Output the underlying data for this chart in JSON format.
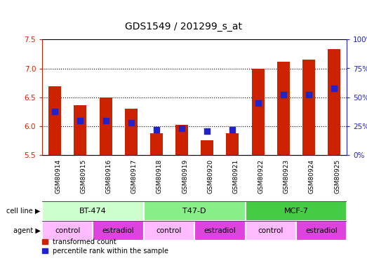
{
  "title": "GDS1549 / 201299_s_at",
  "samples": [
    "GSM80914",
    "GSM80915",
    "GSM80916",
    "GSM80917",
    "GSM80918",
    "GSM80919",
    "GSM80920",
    "GSM80921",
    "GSM80922",
    "GSM80923",
    "GSM80924",
    "GSM80925"
  ],
  "red_values": [
    6.69,
    6.36,
    6.5,
    6.3,
    5.88,
    6.02,
    5.76,
    5.88,
    7.0,
    7.12,
    7.15,
    7.33
  ],
  "blue_pct": [
    38,
    30,
    30,
    28,
    22,
    23,
    21,
    22,
    45,
    52,
    52,
    58
  ],
  "ylim_left": [
    5.5,
    7.5
  ],
  "ylim_right": [
    0,
    100
  ],
  "yticks_left": [
    5.5,
    6.0,
    6.5,
    7.0,
    7.5
  ],
  "yticks_right": [
    0,
    25,
    50,
    75,
    100
  ],
  "bar_color": "#cc2200",
  "dot_color": "#2222cc",
  "tick_area_bg": "#c8c8c8",
  "cell_line_groups": [
    {
      "label": "BT-474",
      "start": 0,
      "end": 3,
      "color": "#ccffcc"
    },
    {
      "label": "T47-D",
      "start": 4,
      "end": 7,
      "color": "#88ee88"
    },
    {
      "label": "MCF-7",
      "start": 8,
      "end": 11,
      "color": "#44cc44"
    }
  ],
  "agent_groups": [
    {
      "label": "control",
      "start": 0,
      "end": 1,
      "color": "#ffbbff"
    },
    {
      "label": "estradiol",
      "start": 2,
      "end": 3,
      "color": "#dd44dd"
    },
    {
      "label": "control",
      "start": 4,
      "end": 5,
      "color": "#ffbbff"
    },
    {
      "label": "estradiol",
      "start": 6,
      "end": 7,
      "color": "#dd44dd"
    },
    {
      "label": "control",
      "start": 8,
      "end": 9,
      "color": "#ffbbff"
    },
    {
      "label": "estradiol",
      "start": 10,
      "end": 11,
      "color": "#dd44dd"
    }
  ],
  "left_label_color": "#cc2200",
  "right_label_color": "#2222cc",
  "title_color": "#000000",
  "title_fontsize": 10,
  "tick_fontsize": 7.5,
  "bar_width": 0.5,
  "dot_size": 30
}
